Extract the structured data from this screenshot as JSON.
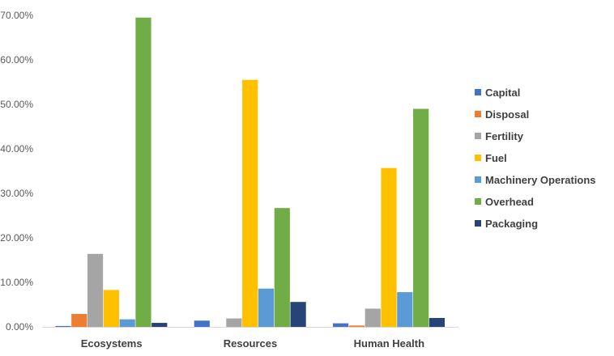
{
  "chart_data": {
    "type": "bar",
    "categories": [
      "Ecosystems",
      "Resources",
      "Human Health"
    ],
    "series": [
      {
        "name": "Capital",
        "color": "#4472C4",
        "values": [
          0.2,
          1.4,
          0.8
        ]
      },
      {
        "name": "Disposal",
        "color": "#ED7D31",
        "values": [
          2.9,
          0.0,
          0.3
        ]
      },
      {
        "name": "Fertility",
        "color": "#A5A5A5",
        "values": [
          16.4,
          1.9,
          4.1
        ]
      },
      {
        "name": "Fuel",
        "color": "#FFC000",
        "values": [
          8.3,
          55.5,
          35.7
        ]
      },
      {
        "name": "Machinery Operations",
        "color": "#5B9BD5",
        "values": [
          1.7,
          8.6,
          7.8
        ]
      },
      {
        "name": "Overhead",
        "color": "#70AD47",
        "values": [
          69.5,
          26.7,
          49.0
        ]
      },
      {
        "name": "Packaging",
        "color": "#264478",
        "values": [
          0.9,
          5.6,
          2.0
        ]
      }
    ],
    "yticks": [
      "0.00%",
      "10.00%",
      "20.00%",
      "30.00%",
      "40.00%",
      "50.00%",
      "60.00%",
      "70.00%"
    ],
    "ylim": [
      0,
      70
    ],
    "grid": false,
    "legend_position": "right",
    "title": "",
    "xlabel": "",
    "ylabel": ""
  }
}
